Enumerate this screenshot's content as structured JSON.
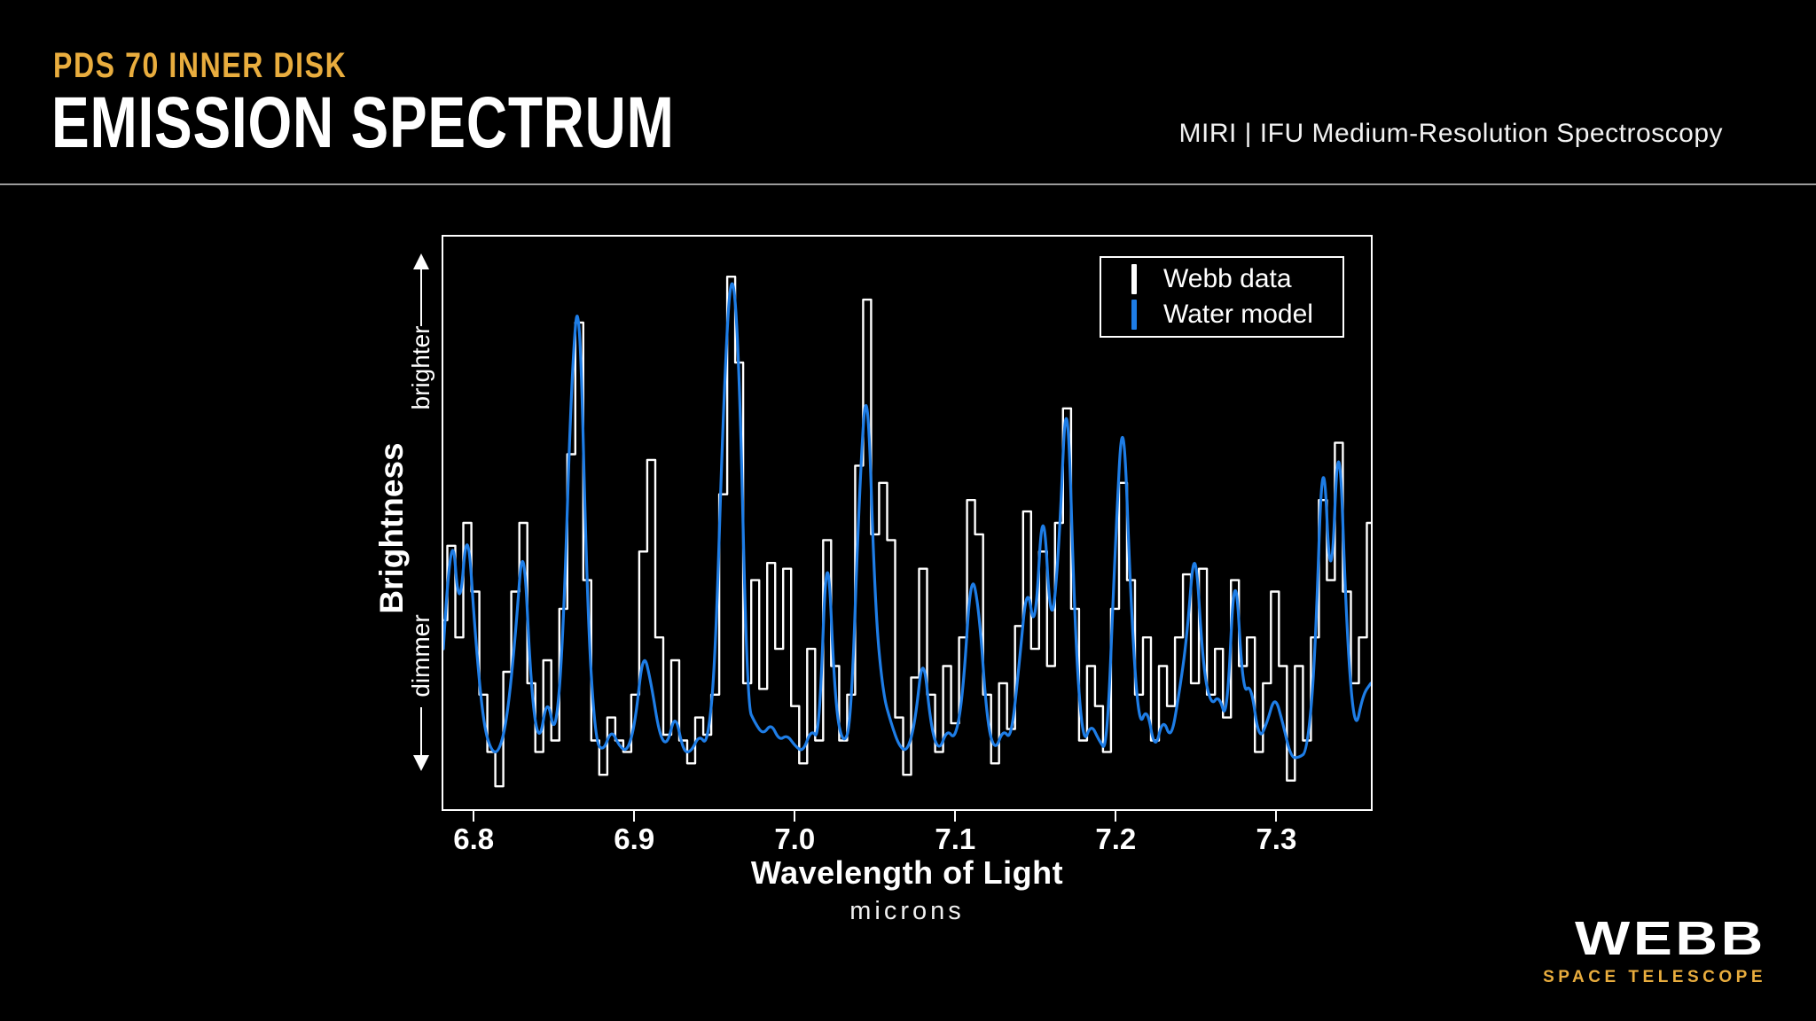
{
  "header": {
    "kicker": "PDS 70 INNER DISK",
    "title": "EMISSION SPECTRUM",
    "instrument": "MIRI | IFU Medium-Resolution Spectroscopy"
  },
  "colors": {
    "background": "#000000",
    "gold": "#E9AD3E",
    "webb_data": "#FFFFFF",
    "water_model": "#1E7DE6",
    "divider": "#9B9B9B",
    "axis": "#FFFFFF"
  },
  "legend": {
    "items": [
      {
        "label": "Webb data",
        "color_key": "webb_data"
      },
      {
        "label": "Water model",
        "color_key": "water_model"
      }
    ]
  },
  "axes": {
    "y_label": "Brightness",
    "y_top_annotation": "brighter",
    "y_bottom_annotation": "dimmer",
    "x_label": "Wavelength of Light",
    "x_sublabel": "microns"
  },
  "logo": {
    "name": "WEBB",
    "subtitle": "SPACE TELESCOPE"
  },
  "chart_data": {
    "type": "line",
    "title": "PDS 70 Inner Disk Emission Spectrum",
    "xlabel": "Wavelength of Light (microns)",
    "ylabel": "Brightness (unlabeled relative scale, dimmer to brighter)",
    "xlim": [
      6.78,
      7.36
    ],
    "ylim": [
      0,
      1
    ],
    "x_ticks": [
      "6.8",
      "6.9",
      "7.0",
      "7.1",
      "7.2",
      "7.3"
    ],
    "x_tick_values": [
      6.8,
      6.9,
      7.0,
      7.1,
      7.2,
      7.3
    ],
    "x_start": 6.78,
    "x_step": 0.005,
    "grid": false,
    "legend_position": "top-right-inside",
    "series": [
      {
        "name": "Webb data",
        "color_key": "webb_data",
        "style": "step",
        "values": [
          0.33,
          0.46,
          0.3,
          0.5,
          0.38,
          0.2,
          0.1,
          0.04,
          0.24,
          0.38,
          0.5,
          0.22,
          0.1,
          0.26,
          0.12,
          0.35,
          0.62,
          0.85,
          0.4,
          0.12,
          0.06,
          0.16,
          0.12,
          0.1,
          0.2,
          0.45,
          0.61,
          0.3,
          0.13,
          0.26,
          0.12,
          0.08,
          0.16,
          0.13,
          0.2,
          0.55,
          0.93,
          0.78,
          0.22,
          0.4,
          0.21,
          0.43,
          0.28,
          0.42,
          0.18,
          0.08,
          0.28,
          0.12,
          0.47,
          0.25,
          0.12,
          0.2,
          0.6,
          0.89,
          0.48,
          0.57,
          0.47,
          0.16,
          0.06,
          0.23,
          0.42,
          0.2,
          0.1,
          0.25,
          0.15,
          0.3,
          0.54,
          0.48,
          0.2,
          0.08,
          0.22,
          0.14,
          0.32,
          0.52,
          0.28,
          0.45,
          0.25,
          0.5,
          0.7,
          0.35,
          0.12,
          0.25,
          0.18,
          0.1,
          0.35,
          0.57,
          0.4,
          0.2,
          0.3,
          0.12,
          0.25,
          0.18,
          0.3,
          0.41,
          0.22,
          0.42,
          0.2,
          0.28,
          0.16,
          0.4,
          0.25,
          0.3,
          0.1,
          0.22,
          0.38,
          0.25,
          0.05,
          0.25,
          0.12,
          0.3,
          0.54,
          0.4,
          0.64,
          0.38,
          0.22,
          0.3,
          0.5
        ]
      },
      {
        "name": "Water model",
        "color_key": "water_model",
        "style": "smooth",
        "values": [
          0.28,
          0.52,
          0.33,
          0.51,
          0.3,
          0.15,
          0.1,
          0.1,
          0.16,
          0.3,
          0.49,
          0.2,
          0.11,
          0.2,
          0.12,
          0.3,
          0.75,
          0.93,
          0.35,
          0.12,
          0.1,
          0.14,
          0.11,
          0.1,
          0.15,
          0.28,
          0.22,
          0.13,
          0.11,
          0.17,
          0.1,
          0.1,
          0.13,
          0.11,
          0.25,
          0.7,
          0.97,
          0.8,
          0.18,
          0.15,
          0.13,
          0.15,
          0.12,
          0.13,
          0.11,
          0.1,
          0.14,
          0.12,
          0.5,
          0.18,
          0.11,
          0.15,
          0.55,
          0.78,
          0.35,
          0.2,
          0.15,
          0.11,
          0.1,
          0.15,
          0.28,
          0.14,
          0.1,
          0.14,
          0.12,
          0.2,
          0.42,
          0.35,
          0.15,
          0.1,
          0.14,
          0.12,
          0.25,
          0.4,
          0.3,
          0.56,
          0.3,
          0.45,
          0.78,
          0.3,
          0.11,
          0.15,
          0.12,
          0.1,
          0.45,
          0.73,
          0.35,
          0.14,
          0.18,
          0.1,
          0.16,
          0.12,
          0.2,
          0.3,
          0.48,
          0.25,
          0.18,
          0.2,
          0.15,
          0.45,
          0.2,
          0.22,
          0.12,
          0.15,
          0.2,
          0.15,
          0.09,
          0.09,
          0.1,
          0.25,
          0.67,
          0.35,
          0.7,
          0.3,
          0.13,
          0.2,
          0.22
        ]
      }
    ]
  }
}
